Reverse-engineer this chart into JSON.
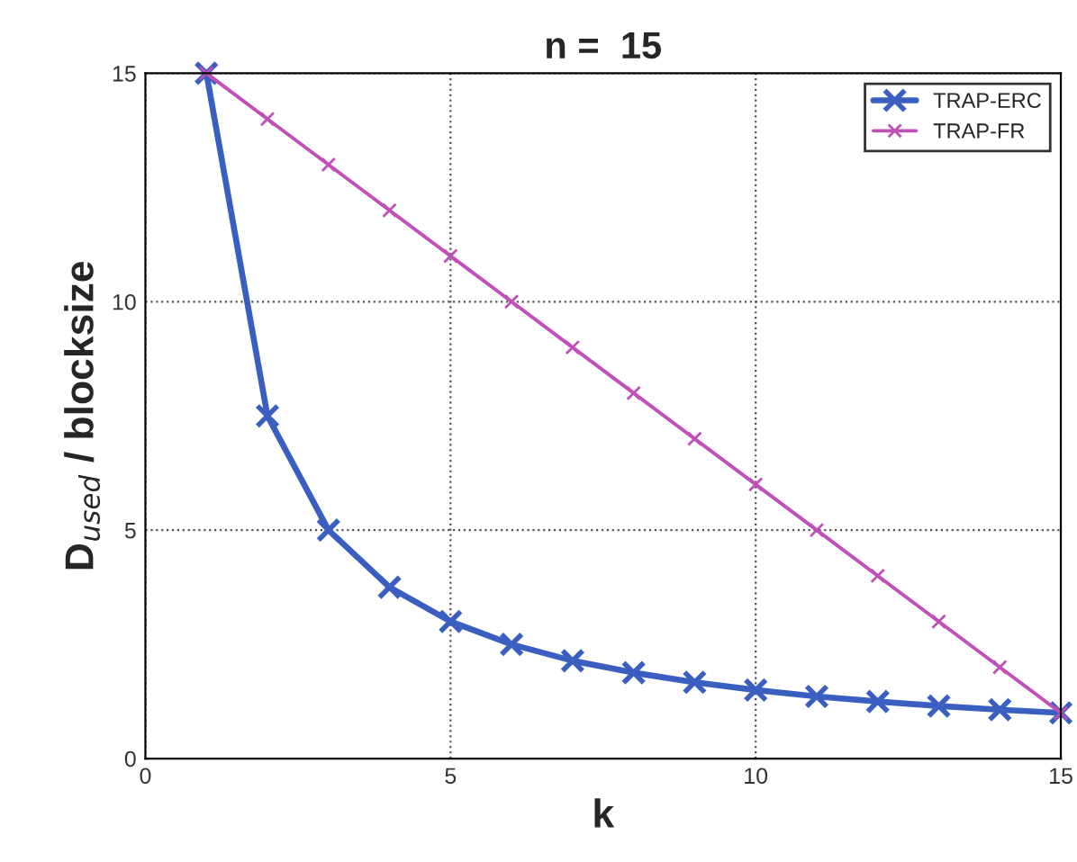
{
  "chart_data": {
    "type": "line",
    "title": "n =  15",
    "xlabel": "k",
    "ylabel": "D$_{used}$ / blocksize",
    "x": [
      1,
      2,
      3,
      4,
      5,
      6,
      7,
      8,
      9,
      10,
      11,
      12,
      13,
      14,
      15
    ],
    "series": [
      {
        "name": "TRAP-ERC",
        "color": "#3a5fc0",
        "values": [
          15,
          7.5,
          5,
          3.75,
          3,
          2.5,
          2.14,
          1.88,
          1.67,
          1.5,
          1.36,
          1.25,
          1.15,
          1.07,
          1
        ]
      },
      {
        "name": "TRAP-FR",
        "color": "#c050b8",
        "values": [
          15,
          14,
          13,
          12,
          11,
          10,
          9,
          8,
          7,
          6,
          5,
          4,
          3,
          2,
          1
        ]
      }
    ],
    "xlim": [
      0,
      15
    ],
    "ylim": [
      0,
      15
    ],
    "xticks": [
      0,
      5,
      10,
      15
    ],
    "yticks": [
      0,
      5,
      10,
      15
    ],
    "grid": true,
    "legend": "top right",
    "marker": "cross",
    "line_style": "solid"
  }
}
